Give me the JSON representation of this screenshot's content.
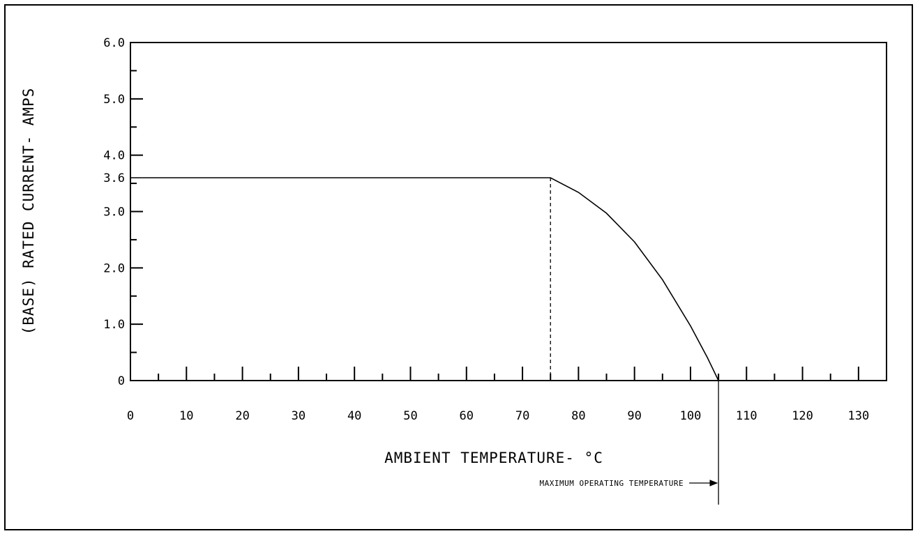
{
  "chart_data": {
    "type": "line",
    "title": "",
    "xlabel": "AMBIENT TEMPERATURE- °C",
    "ylabel": "(BASE) RATED CURRENT- AMPS",
    "xlim": [
      0,
      135
    ],
    "ylim": [
      0,
      6.0
    ],
    "x_ticks": [
      "0",
      "10",
      "20",
      "30",
      "40",
      "50",
      "60",
      "70",
      "80",
      "90",
      "100",
      "110",
      "120",
      "130"
    ],
    "y_ticks": [
      "0",
      "1.0",
      "2.0",
      "3.0",
      "4.0",
      "5.0",
      "6.0"
    ],
    "y_marked_value": "3.6",
    "grid": false,
    "series": [
      {
        "x": [
          0,
          75,
          80,
          85,
          90,
          95,
          100,
          103,
          105
        ],
        "y": [
          3.6,
          3.6,
          3.34,
          2.97,
          2.46,
          1.79,
          0.97,
          0.41,
          0
        ]
      }
    ],
    "annotations": [
      {
        "text": "MAXIMUM OPERATING TEMPERATURE",
        "x": 105
      }
    ],
    "reference_lines": [
      {
        "style": "dashed",
        "x": 75,
        "y_from": 0,
        "y_to": 3.6
      }
    ]
  }
}
